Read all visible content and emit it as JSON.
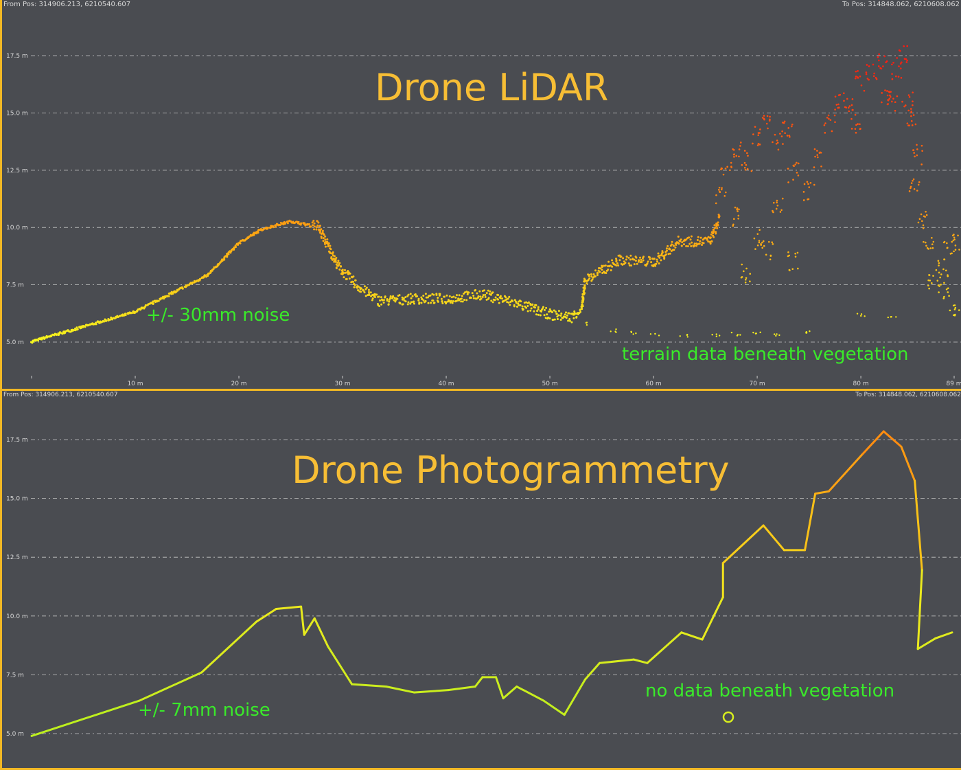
{
  "chart_data": [
    {
      "type": "scatter",
      "title": "Drone LiDAR",
      "from_pos": "From Pos: 314906.213, 6210540.607",
      "to_pos": "To Pos: 314848.062, 6210608.062",
      "xlim": [
        0,
        89
      ],
      "ylim": [
        5.0,
        17.5
      ],
      "x_ticks": [
        {
          "v": 0,
          "label": ""
        },
        {
          "v": 10,
          "label": "10 m"
        },
        {
          "v": 20,
          "label": "20 m"
        },
        {
          "v": 30,
          "label": "30 m"
        },
        {
          "v": 40,
          "label": "40 m"
        },
        {
          "v": 50,
          "label": "50 m"
        },
        {
          "v": 60,
          "label": "60 m"
        },
        {
          "v": 70,
          "label": "70 m"
        },
        {
          "v": 80,
          "label": "80 m"
        },
        {
          "v": 89,
          "label": "89 m"
        }
      ],
      "y_ticks": [
        {
          "v": 5.0,
          "label": "5.0 m"
        },
        {
          "v": 7.5,
          "label": "7.5 m"
        },
        {
          "v": 10.0,
          "label": "10.0 m"
        },
        {
          "v": 12.5,
          "label": "12.5 m"
        },
        {
          "v": 15.0,
          "label": "15.0 m"
        },
        {
          "v": 17.5,
          "label": "17.5 m"
        }
      ],
      "grid": true,
      "color_scale": {
        "low": "#f5f51e",
        "mid": "#ff8c10",
        "high": "#ff1a10"
      },
      "surface": [
        [
          0,
          5.0
        ],
        [
          10,
          6.3
        ],
        [
          17,
          7.9
        ],
        [
          20,
          9.3
        ],
        [
          22.2,
          9.9
        ],
        [
          25,
          10.25
        ],
        [
          27.6,
          10.0
        ],
        [
          29.6,
          8.2
        ],
        [
          31.6,
          7.3
        ],
        [
          33.6,
          6.7
        ],
        [
          36.9,
          6.8
        ],
        [
          40.2,
          6.8
        ],
        [
          43.5,
          7.0
        ],
        [
          46.8,
          6.6
        ],
        [
          50.1,
          6.1
        ],
        [
          52.1,
          6.0
        ],
        [
          53.1,
          6.4
        ],
        [
          53.4,
          7.6
        ],
        [
          56.8,
          8.5
        ],
        [
          60.1,
          8.4
        ],
        [
          62.4,
          9.3
        ],
        [
          65.4,
          9.3
        ],
        [
          66.4,
          10.3
        ]
      ],
      "ground_under_vegetation": [
        [
          53.4,
          5.8
        ],
        [
          56,
          5.5
        ],
        [
          58,
          5.4
        ],
        [
          60.1,
          5.3
        ],
        [
          63,
          5.25
        ],
        [
          66,
          5.3
        ],
        [
          68,
          5.35
        ],
        [
          70,
          5.4
        ],
        [
          72,
          5.35
        ],
        [
          75,
          5.4
        ],
        [
          80,
          6.2
        ],
        [
          83,
          6.1
        ]
      ],
      "canopy": [
        [
          66.5,
          11.5
        ],
        [
          67,
          12.7
        ],
        [
          68,
          13.5
        ],
        [
          69,
          12.9
        ],
        [
          70,
          14
        ],
        [
          71,
          14.6
        ],
        [
          72,
          13.8
        ],
        [
          73,
          14.2
        ],
        [
          73.5,
          12.4
        ],
        [
          75,
          11.6
        ],
        [
          76,
          13
        ],
        [
          77,
          14.5
        ],
        [
          78,
          15.5
        ],
        [
          79,
          15.2
        ],
        [
          79.5,
          14.5
        ],
        [
          80,
          16.4
        ],
        [
          81,
          16.8
        ],
        [
          82,
          17.3
        ],
        [
          82.5,
          15.8
        ],
        [
          83,
          15.5
        ],
        [
          83.5,
          16.9
        ],
        [
          84,
          17.5
        ],
        [
          84.5,
          15.5
        ],
        [
          85,
          14.8
        ],
        [
          85.5,
          13.2
        ],
        [
          85.2,
          11.8
        ],
        [
          86,
          10.3
        ],
        [
          86.5,
          9.3
        ],
        [
          87,
          7.7
        ],
        [
          88,
          8.2
        ],
        [
          88.5,
          9.0
        ],
        [
          89,
          9.3
        ],
        [
          88,
          7.2
        ],
        [
          89,
          6.6
        ],
        [
          68,
          10.5
        ],
        [
          70,
          9.5
        ],
        [
          72,
          11
        ],
        [
          69,
          8
        ],
        [
          73.5,
          8.5
        ],
        [
          71,
          9
        ]
      ],
      "annotations": {
        "noise": "+/- 30mm noise",
        "vegetation": "terrain data beneath vegetation"
      }
    },
    {
      "type": "line",
      "title": "Drone Photogrammetry",
      "from_pos": "From Pos: 314906.213, 6210540.607",
      "to_pos": "To Pos: 314848.062, 6210608.062",
      "xlim": [
        0,
        89
      ],
      "ylim": [
        5.0,
        17.5
      ],
      "y_ticks": [
        {
          "v": 5.0,
          "label": "5.0 m"
        },
        {
          "v": 7.5,
          "label": "7.5 m"
        },
        {
          "v": 10.0,
          "label": "10.0 m"
        },
        {
          "v": 12.5,
          "label": "12.5 m"
        },
        {
          "v": 15.0,
          "label": "15.0 m"
        },
        {
          "v": 17.5,
          "label": "17.5 m"
        }
      ],
      "grid": true,
      "color_scale": {
        "low": "#b8f01e",
        "mid": "#f5e81e",
        "high": "#ff8c10"
      },
      "surface": [
        [
          0,
          4.9
        ],
        [
          10.4,
          6.4
        ],
        [
          16.4,
          7.6
        ],
        [
          21.7,
          9.76
        ],
        [
          23.6,
          10.3
        ],
        [
          26,
          10.4
        ],
        [
          26.3,
          9.2
        ],
        [
          27.3,
          9.9
        ],
        [
          28.6,
          8.7
        ],
        [
          30.9,
          7.1
        ],
        [
          34.2,
          7.0
        ],
        [
          36.9,
          6.75
        ],
        [
          40.2,
          6.85
        ],
        [
          42.8,
          7.0
        ],
        [
          43.5,
          7.4
        ],
        [
          44.8,
          7.4
        ],
        [
          45.5,
          6.5
        ],
        [
          46.8,
          7.0
        ],
        [
          49.4,
          6.4
        ],
        [
          51.4,
          5.8
        ],
        [
          53.4,
          7.3
        ],
        [
          54.8,
          8.0
        ],
        [
          58.1,
          8.15
        ],
        [
          59.4,
          8.0
        ],
        [
          62.7,
          9.3
        ],
        [
          64.7,
          9.0
        ],
        [
          66.7,
          10.8
        ],
        [
          66.7,
          12.25
        ],
        [
          70.6,
          13.85
        ],
        [
          72.6,
          12.8
        ],
        [
          74.6,
          12.8
        ],
        [
          75.6,
          15.2
        ],
        [
          76.9,
          15.3
        ],
        [
          80.2,
          16.9
        ],
        [
          82.2,
          17.85
        ],
        [
          83.9,
          17.2
        ],
        [
          85.2,
          15.75
        ],
        [
          85.9,
          11.95
        ],
        [
          85.5,
          8.6
        ],
        [
          87.2,
          9.05
        ],
        [
          88.8,
          9.3
        ]
      ],
      "annotations": {
        "noise": "+/- 7mm noise",
        "vegetation": "no data beneath vegetation"
      }
    }
  ]
}
